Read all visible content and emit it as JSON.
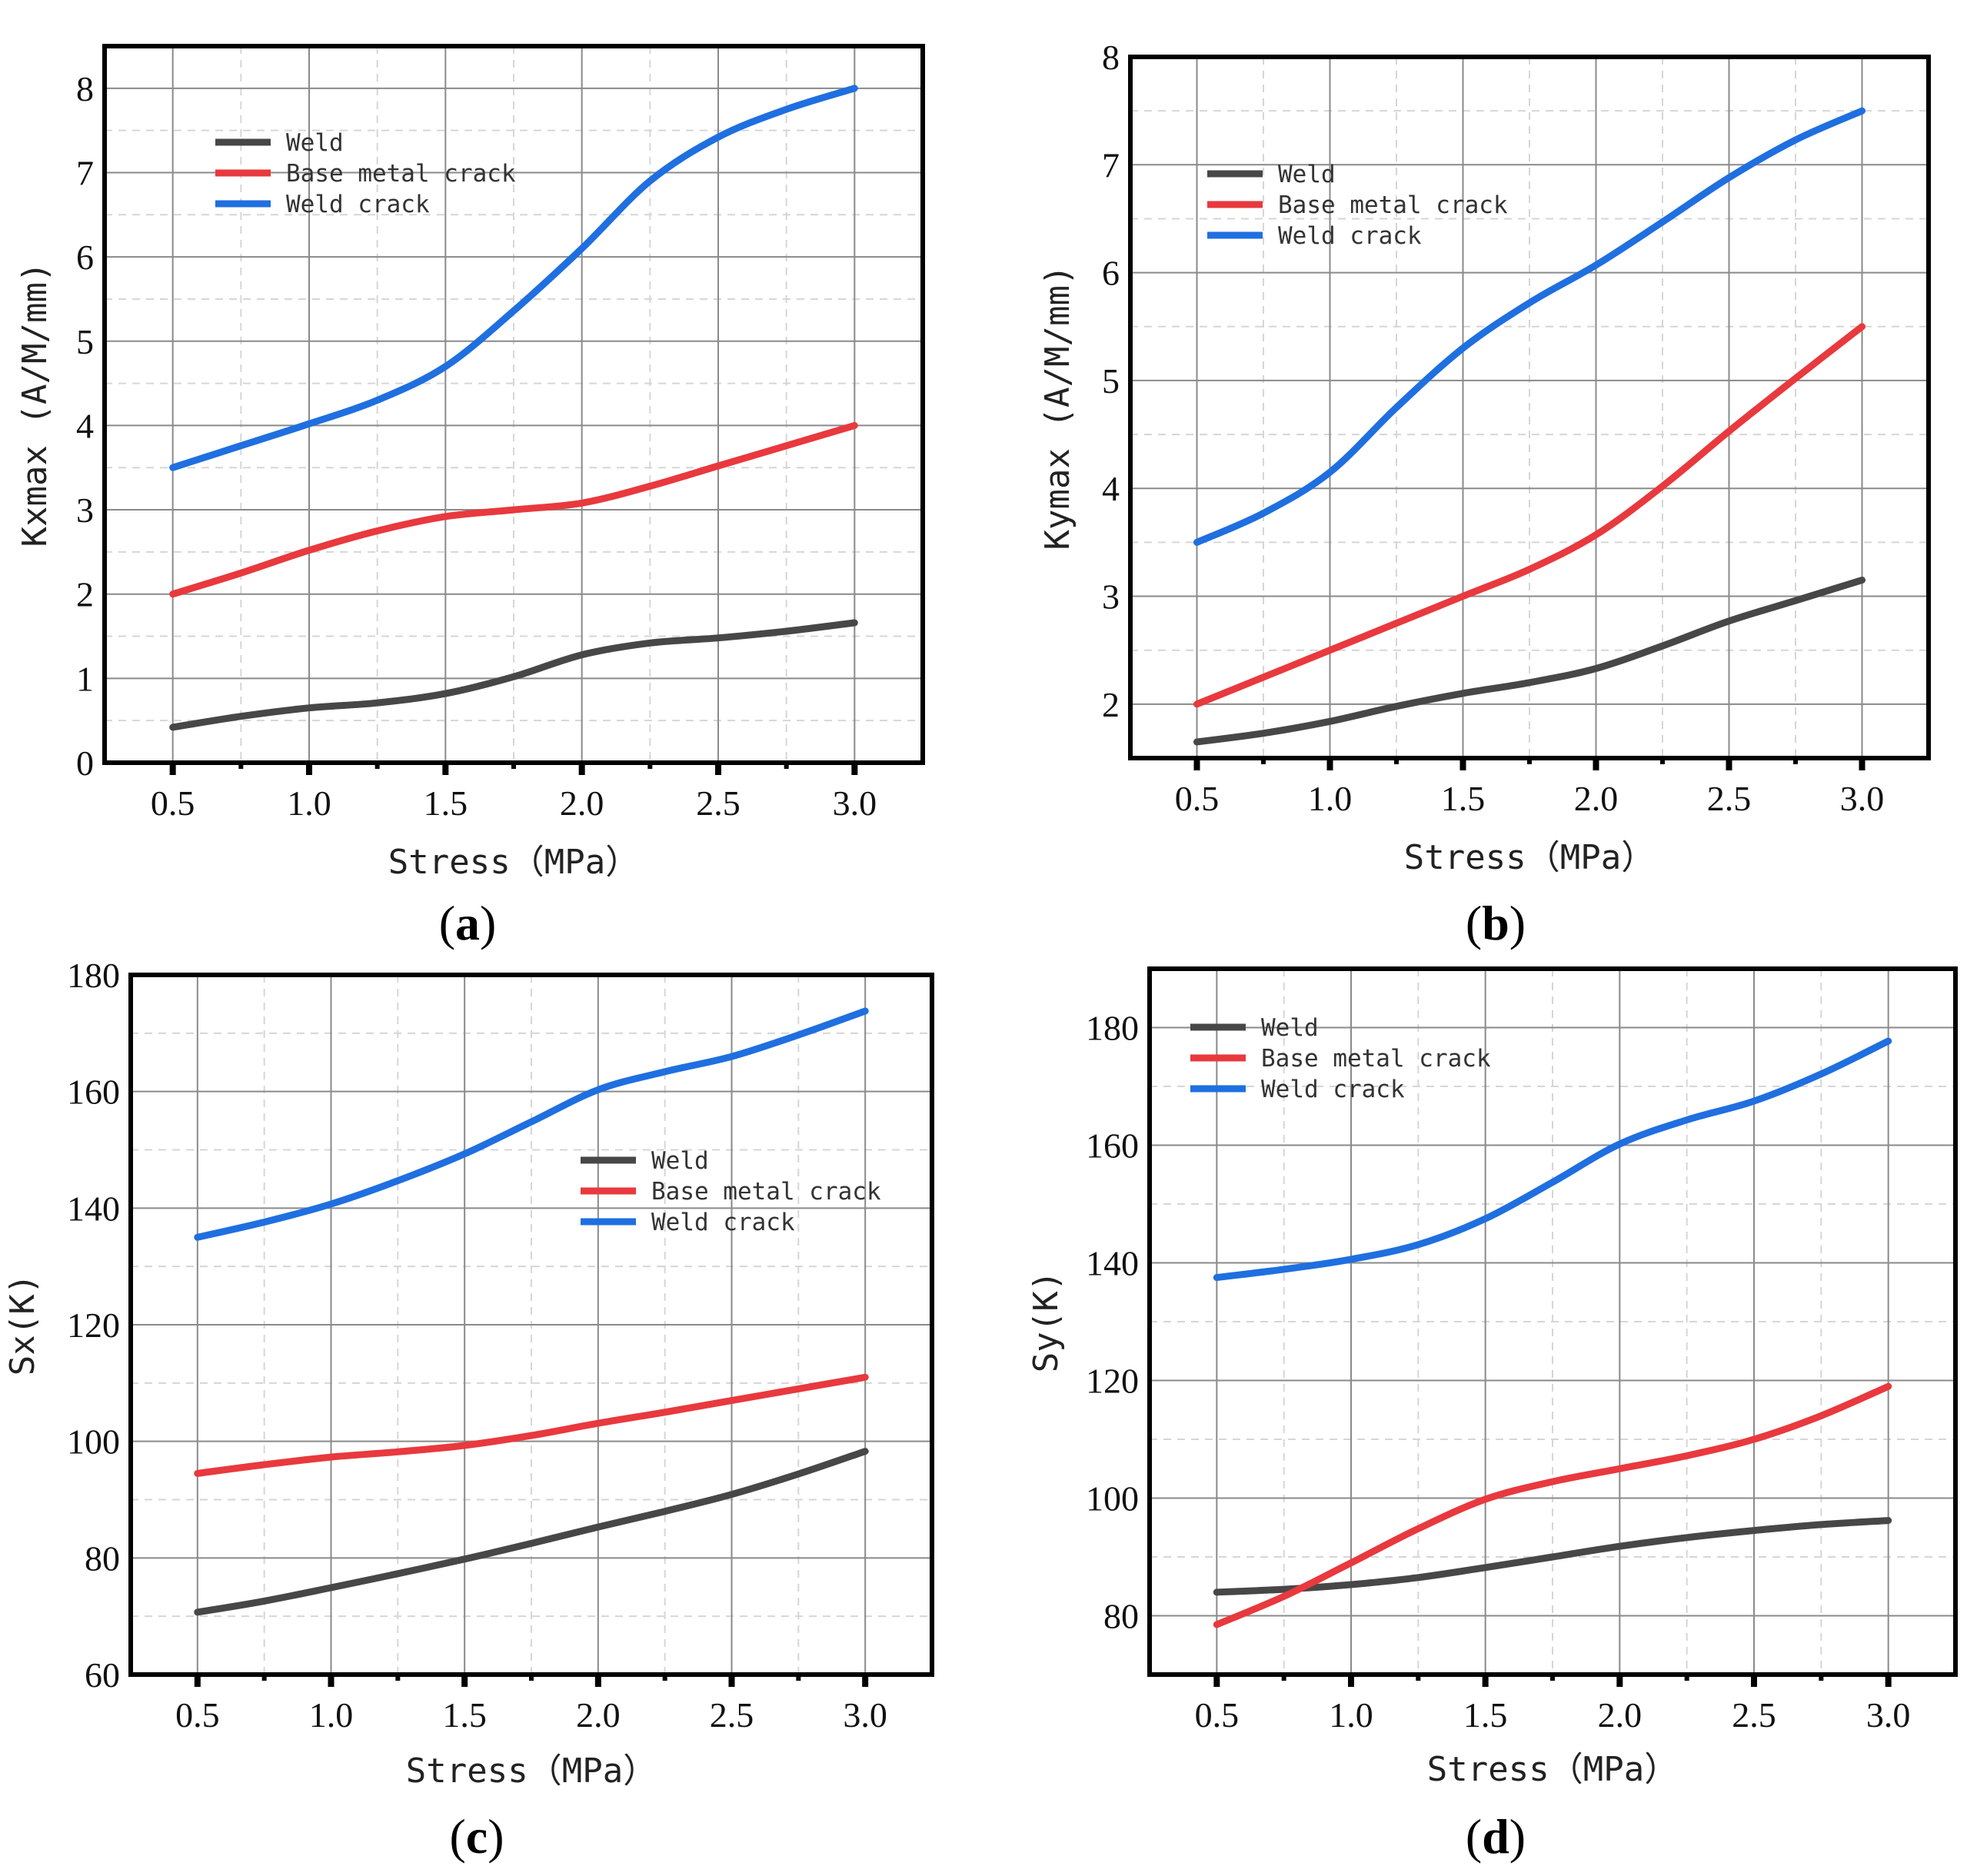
{
  "colors": {
    "weld": "#474747",
    "base_metal_crack": "#e8393e",
    "weld_crack": "#1f6fe0",
    "grid_major": "#8a8a8a",
    "grid_minor": "#d6d6d6",
    "frame": "#000000"
  },
  "chart_data": [
    {
      "id": "a",
      "type": "line",
      "panel_label": "a",
      "xlabel": "Stress（MPa）",
      "ylabel": "Kxmax (A/M/mm)",
      "x": [
        0.5,
        0.75,
        1.0,
        1.25,
        1.5,
        1.75,
        2.0,
        2.25,
        2.5,
        2.75,
        3.0
      ],
      "xticks": [
        0.5,
        1.0,
        1.5,
        2.0,
        2.5,
        3.0
      ],
      "xtick_labels": [
        "0.5",
        "1.0",
        "1.5",
        "2.0",
        "2.5",
        "3.0"
      ],
      "xlim": [
        0.25,
        3.25
      ],
      "ylim": [
        0,
        8.5
      ],
      "yticks": [
        0,
        1,
        2,
        3,
        4,
        5,
        6,
        7,
        8
      ],
      "ytick_labels": [
        "0",
        "1",
        "2",
        "3",
        "4",
        "5",
        "6",
        "7",
        "8"
      ],
      "legend_position": "top-left",
      "series": [
        {
          "name": "Weld",
          "color_key": "weld",
          "values": [
            0.42,
            0.55,
            0.65,
            0.71,
            0.82,
            1.02,
            1.28,
            1.42,
            1.48,
            1.56,
            1.66
          ]
        },
        {
          "name": "Base metal crack",
          "color_key": "base_metal_crack",
          "values": [
            2.0,
            2.25,
            2.52,
            2.75,
            2.92,
            3.0,
            3.08,
            3.28,
            3.52,
            3.76,
            4.0
          ]
        },
        {
          "name": "Weld crack",
          "color_key": "weld_crack",
          "values": [
            3.5,
            3.76,
            4.02,
            4.3,
            4.7,
            5.36,
            6.1,
            6.9,
            7.42,
            7.75,
            8.0
          ]
        }
      ]
    },
    {
      "id": "b",
      "type": "line",
      "panel_label": "b",
      "xlabel": "Stress（MPa）",
      "ylabel": "Kymax (A/M/mm)",
      "x": [
        0.5,
        0.75,
        1.0,
        1.25,
        1.5,
        1.75,
        2.0,
        2.25,
        2.5,
        2.75,
        3.0
      ],
      "xticks": [
        0.5,
        1.0,
        1.5,
        2.0,
        2.5,
        3.0
      ],
      "xtick_labels": [
        "0.5",
        "1.0",
        "1.5",
        "2.0",
        "2.5",
        "3.0"
      ],
      "xlim": [
        0.25,
        3.25
      ],
      "ylim": [
        1.5,
        8.0
      ],
      "yticks": [
        2,
        3,
        4,
        5,
        6,
        7,
        8
      ],
      "ytick_labels": [
        "2",
        "3",
        "4",
        "5",
        "6",
        "7",
        "8"
      ],
      "legend_position": "top-left",
      "series": [
        {
          "name": "Weld",
          "color_key": "weld",
          "values": [
            1.65,
            1.73,
            1.84,
            1.98,
            2.1,
            2.2,
            2.33,
            2.54,
            2.77,
            2.96,
            3.15
          ]
        },
        {
          "name": "Base metal crack",
          "color_key": "base_metal_crack",
          "values": [
            2.0,
            2.25,
            2.5,
            2.75,
            3.0,
            3.25,
            3.57,
            4.02,
            4.53,
            5.02,
            5.5
          ]
        },
        {
          "name": "Weld crack",
          "color_key": "weld_crack",
          "values": [
            3.5,
            3.77,
            4.15,
            4.75,
            5.3,
            5.72,
            6.07,
            6.47,
            6.88,
            7.23,
            7.5
          ]
        }
      ]
    },
    {
      "id": "c",
      "type": "line",
      "panel_label": "c",
      "xlabel": "Stress（MPa）",
      "ylabel": "Sx(K)",
      "x": [
        0.5,
        0.75,
        1.0,
        1.25,
        1.5,
        1.75,
        2.0,
        2.25,
        2.5,
        2.75,
        3.0
      ],
      "xticks": [
        0.5,
        1.0,
        1.5,
        2.0,
        2.5,
        3.0
      ],
      "xtick_labels": [
        "0.5",
        "1.0",
        "1.5",
        "2.0",
        "2.5",
        "3.0"
      ],
      "xlim": [
        0.25,
        3.25
      ],
      "ylim": [
        60,
        180
      ],
      "yticks": [
        60,
        80,
        100,
        120,
        140,
        160,
        180
      ],
      "ytick_labels": [
        "60",
        "80",
        "100",
        "120",
        "140",
        "160",
        "180"
      ],
      "legend_position": "center-right",
      "series": [
        {
          "name": "Weld",
          "color_key": "weld",
          "values": [
            70.7,
            72.6,
            74.9,
            77.3,
            79.8,
            82.5,
            85.3,
            88.0,
            90.9,
            94.4,
            98.3
          ]
        },
        {
          "name": "Base metal crack",
          "color_key": "base_metal_crack",
          "values": [
            94.5,
            96.0,
            97.3,
            98.2,
            99.3,
            101.0,
            103.1,
            105.0,
            107.0,
            109.0,
            111.0
          ]
        },
        {
          "name": "Weld crack",
          "color_key": "weld_crack",
          "values": [
            135.0,
            137.6,
            140.7,
            144.7,
            149.3,
            154.8,
            160.3,
            163.4,
            166.0,
            169.7,
            173.8
          ]
        }
      ]
    },
    {
      "id": "d",
      "type": "line",
      "panel_label": "d",
      "xlabel": "Stress（MPa）",
      "ylabel": "Sy(K)",
      "x": [
        0.5,
        0.75,
        1.0,
        1.25,
        1.5,
        1.75,
        2.0,
        2.25,
        2.5,
        2.75,
        3.0
      ],
      "xticks": [
        0.5,
        1.0,
        1.5,
        2.0,
        2.5,
        3.0
      ],
      "xtick_labels": [
        "0.5",
        "1.0",
        "1.5",
        "2.0",
        "2.5",
        "3.0"
      ],
      "xlim": [
        0.25,
        3.25
      ],
      "ylim": [
        70,
        190
      ],
      "yticks": [
        80,
        100,
        120,
        140,
        160,
        180
      ],
      "ytick_labels": [
        "80",
        "100",
        "120",
        "140",
        "160",
        "180"
      ],
      "legend_position": "top-left",
      "series": [
        {
          "name": "Weld",
          "color_key": "weld",
          "values": [
            84.0,
            84.5,
            85.3,
            86.5,
            88.2,
            90.0,
            91.8,
            93.3,
            94.5,
            95.5,
            96.2
          ]
        },
        {
          "name": "Base metal crack",
          "color_key": "base_metal_crack",
          "values": [
            78.5,
            83.3,
            89.0,
            94.8,
            99.8,
            102.8,
            105.0,
            107.2,
            110.0,
            114.0,
            119.0
          ]
        },
        {
          "name": "Weld crack",
          "color_key": "weld_crack",
          "values": [
            137.5,
            138.9,
            140.6,
            143.1,
            147.5,
            153.7,
            160.2,
            164.3,
            167.5,
            172.1,
            177.7
          ]
        }
      ]
    }
  ]
}
